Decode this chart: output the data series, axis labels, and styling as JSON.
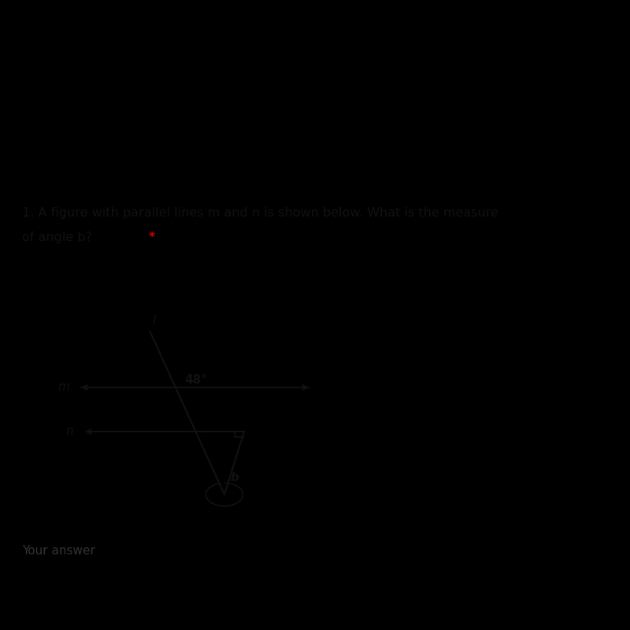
{
  "bg_black": "#000000",
  "bg_card_main": "#e8e6e0",
  "bg_card_top": "#d0cfd8",
  "bg_bottom_strip": "#e8e6e0",
  "title_line1": "1. A figure with parallel lines m and n is shown below. What is the measure",
  "title_line2": "of angle b? ",
  "title_star": "*",
  "title_fontsize": 11.5,
  "title_color": "#111111",
  "star_color": "#cc0000",
  "your_answer_text": "Your answer",
  "your_answer_fontsize": 11,
  "your_answer_color": "#333333",
  "angle_label": "48°",
  "b_label": "b",
  "m_label": "m",
  "n_label": "n",
  "l_label": "l",
  "line_color": "#111111",
  "line_width": 1.5
}
